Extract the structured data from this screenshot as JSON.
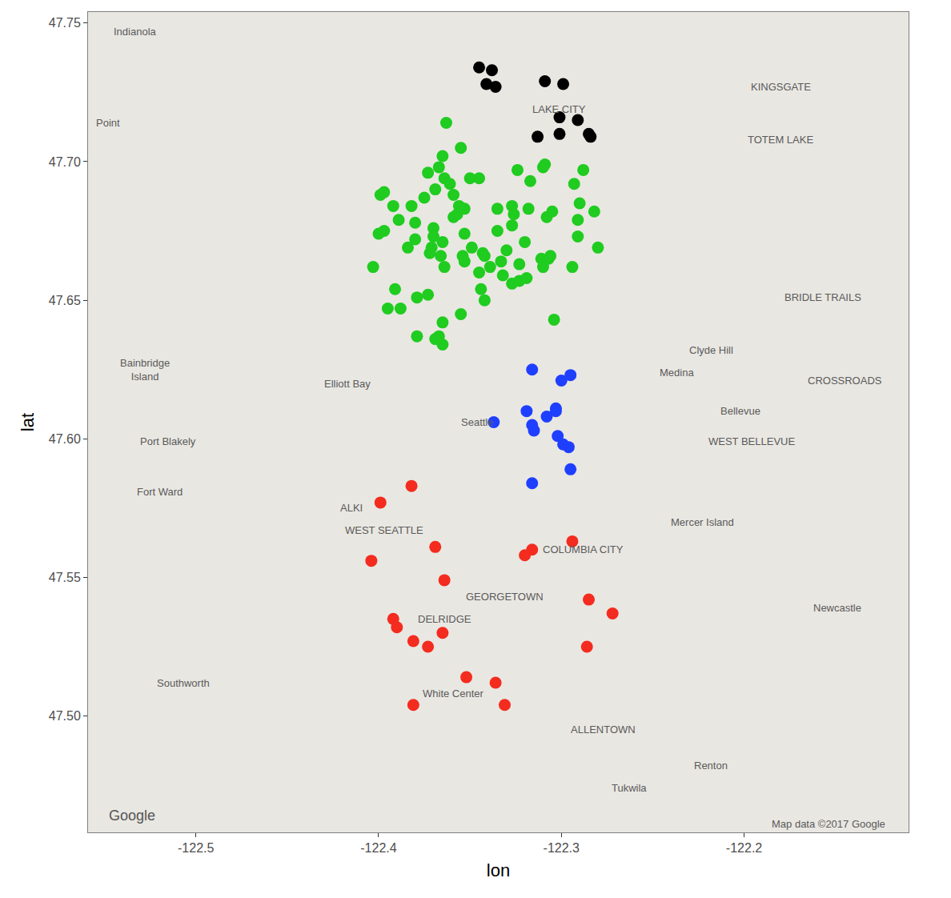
{
  "chart_data": {
    "type": "scatter",
    "x_label": "lon",
    "y_label": "lat",
    "xlim": [
      -122.559,
      -122.11
    ],
    "ylim": [
      47.458,
      47.754
    ],
    "xticks": [
      -122.5,
      -122.4,
      -122.3,
      -122.2
    ],
    "yticks": [
      {
        "value": 47.5,
        "label": "47.50"
      },
      47.55,
      {
        "value": 47.6,
        "label": "47.60"
      },
      47.65,
      {
        "value": 47.7,
        "label": "47.70"
      },
      47.75
    ],
    "grid": false,
    "marker": "circle",
    "series": [
      {
        "color": "#000000",
        "x": [
          -122.345,
          -122.338,
          -122.341,
          -122.336,
          -122.309,
          -122.299,
          -122.301,
          -122.291,
          -122.301,
          -122.313,
          -122.285,
          -122.284
        ],
        "values": [
          47.734,
          47.733,
          47.728,
          47.727,
          47.729,
          47.728,
          47.716,
          47.715,
          47.71,
          47.709,
          47.71,
          47.709
        ]
      },
      {
        "color": "#1fcc1f",
        "x": [
          -122.363,
          -122.355,
          -122.365,
          -122.367,
          -122.373,
          -122.345,
          -122.35,
          -122.364,
          -122.361,
          -122.369,
          -122.359,
          -122.375,
          -122.356,
          -122.399,
          -122.397,
          -122.392,
          -122.382,
          -122.38,
          -122.389,
          -122.397,
          -122.4,
          -122.38,
          -122.37,
          -122.37,
          -122.371,
          -122.372,
          -122.384,
          -122.359,
          -122.357,
          -122.353,
          -122.335,
          -122.327,
          -122.326,
          -122.327,
          -122.335,
          -122.353,
          -122.365,
          -122.354,
          -122.353,
          -122.343,
          -122.342,
          -122.333,
          -122.33,
          -122.32,
          -122.332,
          -122.323,
          -122.319,
          -122.323,
          -122.311,
          -122.307,
          -122.31,
          -122.306,
          -122.308,
          -122.305,
          -122.31,
          -122.309,
          -122.317,
          -122.324,
          -122.288,
          -122.293,
          -122.29,
          -122.291,
          -122.291,
          -122.282,
          -122.28,
          -122.294,
          -122.364,
          -122.349,
          -122.403,
          -122.391,
          -122.395,
          -122.388,
          -122.379,
          -122.373,
          -122.366,
          -122.344,
          -122.342,
          -122.355,
          -122.365,
          -122.367,
          -122.379,
          -122.369,
          -122.365,
          -122.304,
          -122.345,
          -122.339,
          -122.327,
          -122.318
        ],
        "values": [
          47.714,
          47.705,
          47.702,
          47.698,
          47.696,
          47.694,
          47.694,
          47.694,
          47.692,
          47.69,
          47.688,
          47.687,
          47.684,
          47.688,
          47.689,
          47.684,
          47.684,
          47.678,
          47.679,
          47.675,
          47.674,
          47.672,
          47.676,
          47.673,
          47.669,
          47.667,
          47.669,
          47.68,
          47.681,
          47.683,
          47.683,
          47.684,
          47.681,
          47.677,
          47.675,
          47.674,
          47.671,
          47.666,
          47.664,
          47.667,
          47.666,
          47.664,
          47.668,
          47.671,
          47.659,
          47.657,
          47.658,
          47.663,
          47.665,
          47.665,
          47.662,
          47.666,
          47.68,
          47.682,
          47.698,
          47.699,
          47.693,
          47.697,
          47.697,
          47.692,
          47.685,
          47.679,
          47.673,
          47.682,
          47.669,
          47.662,
          47.662,
          47.669,
          47.662,
          47.654,
          47.647,
          47.647,
          47.651,
          47.652,
          47.666,
          47.654,
          47.65,
          47.645,
          47.642,
          47.637,
          47.637,
          47.636,
          47.634,
          47.643,
          47.66,
          47.662,
          47.656,
          47.683
        ]
      },
      {
        "color": "#1f3fff",
        "x": [
          -122.316,
          -122.295,
          -122.3,
          -122.319,
          -122.337,
          -122.308,
          -122.303,
          -122.303,
          -122.315,
          -122.316,
          -122.302,
          -122.299,
          -122.296,
          -122.295,
          -122.316
        ],
        "values": [
          47.625,
          47.623,
          47.621,
          47.61,
          47.606,
          47.608,
          47.611,
          47.61,
          47.603,
          47.605,
          47.601,
          47.598,
          47.597,
          47.589,
          47.584
        ]
      },
      {
        "color": "#f42b1f",
        "x": [
          -122.382,
          -122.399,
          -122.404,
          -122.369,
          -122.364,
          -122.32,
          -122.316,
          -122.294,
          -122.285,
          -122.272,
          -122.286,
          -122.392,
          -122.39,
          -122.381,
          -122.373,
          -122.365,
          -122.352,
          -122.336,
          -122.331,
          -122.381
        ],
        "values": [
          47.583,
          47.577,
          47.556,
          47.561,
          47.549,
          47.558,
          47.56,
          47.563,
          47.542,
          47.537,
          47.525,
          47.535,
          47.532,
          47.527,
          47.525,
          47.53,
          47.514,
          47.512,
          47.504,
          47.504
        ]
      }
    ],
    "annotations": [
      {
        "text": "Indianola",
        "x": -122.533,
        "y": 47.747
      },
      {
        "text": "Point",
        "x": -122.548,
        "y": 47.714
      },
      {
        "text": "KINGSGATE",
        "x": -122.18,
        "y": 47.727
      },
      {
        "text": "LAKE CITY",
        "x": -122.301,
        "y": 47.719
      },
      {
        "text": "TOTEM LAKE",
        "x": -122.18,
        "y": 47.708
      },
      {
        "text": "Seattle",
        "x": -122.346,
        "y": 47.606
      },
      {
        "text": "Elliott Bay",
        "x": -122.417,
        "y": 47.62
      },
      {
        "text": "Clyde Hill",
        "x": -122.218,
        "y": 47.632
      },
      {
        "text": "Medina",
        "x": -122.237,
        "y": 47.624
      },
      {
        "text": "CROSSROADS",
        "x": -122.145,
        "y": 47.621
      },
      {
        "text": "Bellevue",
        "x": -122.202,
        "y": 47.61
      },
      {
        "text": "WEST BELLEVUE",
        "x": -122.196,
        "y": 47.599
      },
      {
        "text": "BRIDLE TRAILS",
        "x": -122.157,
        "y": 47.651
      },
      {
        "text": "Bainbridge\nIsland",
        "x": -122.528,
        "y": 47.625
      },
      {
        "text": "Port Blakely",
        "x": -122.515,
        "y": 47.599
      },
      {
        "text": "Fort Ward",
        "x": -122.52,
        "y": 47.581
      },
      {
        "text": "ALKI",
        "x": -122.415,
        "y": 47.575
      },
      {
        "text": "WEST SEATTLE",
        "x": -122.397,
        "y": 47.567
      },
      {
        "text": "COLUMBIA CITY",
        "x": -122.288,
        "y": 47.56
      },
      {
        "text": "GEORGETOWN",
        "x": -122.331,
        "y": 47.543
      },
      {
        "text": "DELRIDGE",
        "x": -122.364,
        "y": 47.535
      },
      {
        "text": "Mercer Island",
        "x": -122.223,
        "y": 47.57
      },
      {
        "text": "Newcastle",
        "x": -122.149,
        "y": 47.539
      },
      {
        "text": "White Center",
        "x": -122.359,
        "y": 47.508
      },
      {
        "text": "Southworth",
        "x": -122.507,
        "y": 47.512
      },
      {
        "text": "ALLENTOWN",
        "x": -122.277,
        "y": 47.495
      },
      {
        "text": "Renton",
        "x": -122.218,
        "y": 47.482
      },
      {
        "text": "Tukwila",
        "x": -122.263,
        "y": 47.474
      },
      {
        "text": "Google",
        "x": -122.535,
        "y": 47.464
      },
      {
        "text": "Map data ©2017 Google",
        "x": -122.154,
        "y": 47.461
      }
    ]
  }
}
